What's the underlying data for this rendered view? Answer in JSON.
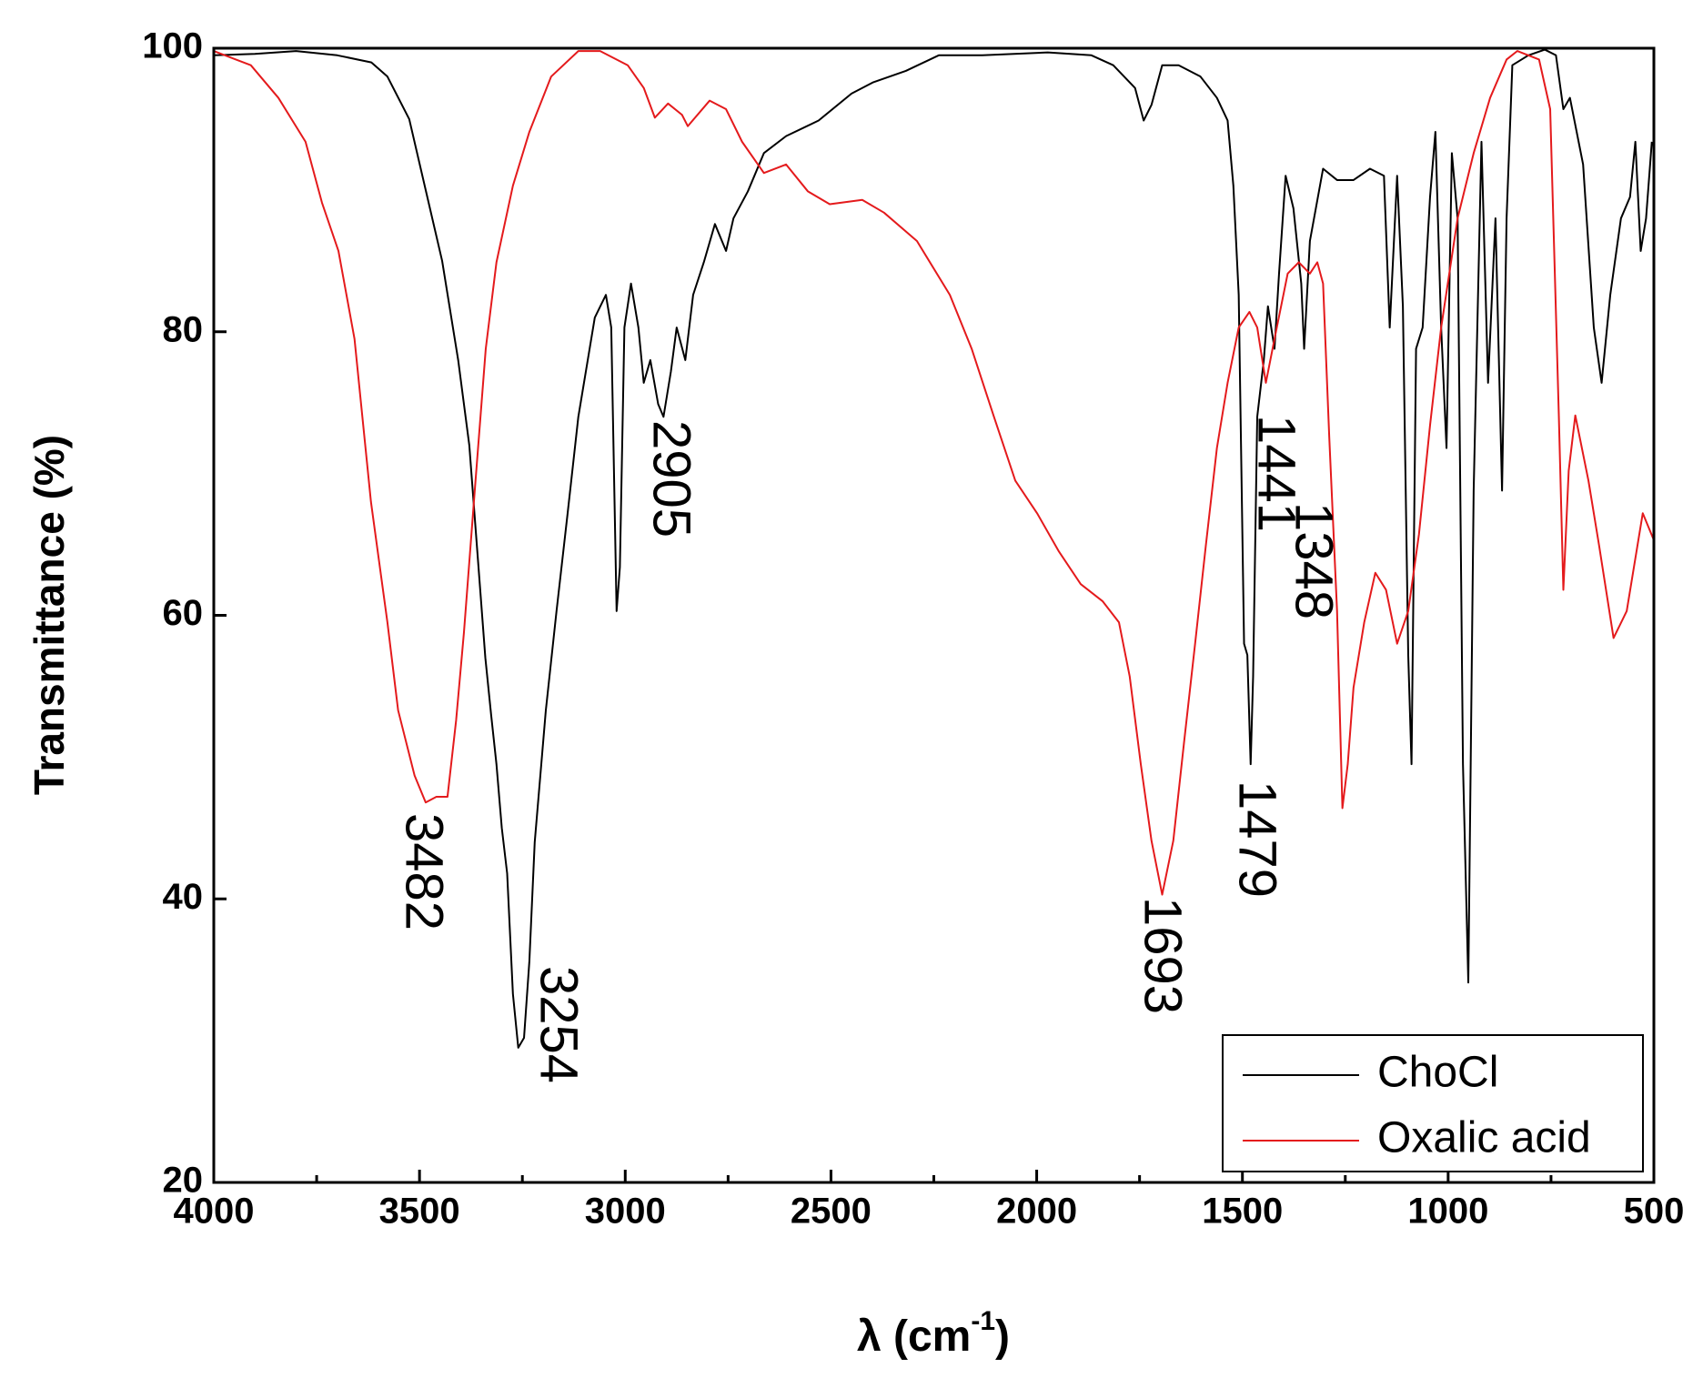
{
  "chart_data": {
    "type": "line",
    "x_label_parts": [
      "λ (cm",
      "-1",
      ")"
    ],
    "y_label": "Transmittance  (%)",
    "xlim": [
      4000,
      500
    ],
    "xticks": [
      4000,
      3500,
      3000,
      2500,
      2000,
      1500,
      1000,
      500
    ],
    "xminor_ticks": [
      3750,
      3250,
      2750,
      2250,
      1750,
      1250,
      750
    ],
    "ylim": [
      20,
      100
    ],
    "yticks": [
      20,
      40,
      60,
      80,
      100
    ],
    "legend": "lower right",
    "annotations": [
      "3482",
      "3254",
      "2905",
      "1693",
      "1479",
      "1441",
      "1348"
    ],
    "series": [
      {
        "name": "ChoCl",
        "color": "#000000",
        "x": [
          4000,
          3900,
          3800,
          3700,
          3617,
          3578,
          3525,
          3485,
          3445,
          3406,
          3379,
          3353,
          3340,
          3326,
          3313,
          3300,
          3287,
          3273,
          3260,
          3246,
          3233,
          3220,
          3193,
          3167,
          3140,
          3114,
          3074,
          3047,
          3034,
          3021,
          3013,
          3002,
          2986,
          2968,
          2955,
          2939,
          2920,
          2907,
          2889,
          2875,
          2854,
          2835,
          2809,
          2782,
          2755,
          2737,
          2702,
          2663,
          2609,
          2530,
          2450,
          2397,
          2318,
          2238,
          2132,
          1973,
          1867,
          1814,
          1761,
          1740,
          1721,
          1695,
          1655,
          1602,
          1562,
          1536,
          1522,
          1509,
          1496,
          1488,
          1480,
          1474,
          1464,
          1448,
          1438,
          1422,
          1411,
          1395,
          1376,
          1357,
          1350,
          1336,
          1304,
          1270,
          1230,
          1190,
          1156,
          1142,
          1124,
          1110,
          1097,
          1089,
          1078,
          1062,
          1044,
          1031,
          1017,
          1004,
          991,
          977,
          964,
          951,
          938,
          919,
          903,
          885,
          869,
          858,
          844,
          805,
          765,
          738,
          720,
          704,
          672,
          646,
          627,
          606,
          580,
          558,
          545,
          532,
          519,
          505
        ],
        "values": [
          99.5,
          99.6,
          99.8,
          99.5,
          99,
          98,
          95,
          90,
          85,
          78,
          72,
          62,
          57,
          53,
          49.5,
          45,
          41.8,
          33.3,
          29.5,
          30.2,
          35.6,
          44,
          53.3,
          60.3,
          67.2,
          74,
          81,
          82.6,
          80.3,
          60.3,
          63.4,
          80.3,
          83.4,
          80.3,
          76.4,
          78,
          74.9,
          74,
          77.2,
          80.3,
          78,
          82.6,
          84.9,
          87.6,
          85.7,
          88,
          89.9,
          92.6,
          93.8,
          94.9,
          96.8,
          97.6,
          98.4,
          99.5,
          99.5,
          99.7,
          99.5,
          98.8,
          97.2,
          94.9,
          96,
          98.8,
          98.8,
          98,
          96.5,
          94.9,
          90.3,
          82.6,
          58,
          57.2,
          49.5,
          55.7,
          74,
          78,
          81.8,
          78.8,
          84.1,
          91,
          88.7,
          83.4,
          78.8,
          86.4,
          91.5,
          90.7,
          90.7,
          91.5,
          91,
          80.3,
          91,
          81.8,
          57.2,
          49.5,
          78.8,
          80.3,
          89.5,
          94.1,
          80.3,
          71.8,
          92.6,
          88,
          49.5,
          34.1,
          68.8,
          93.4,
          76.4,
          88,
          68.8,
          88,
          98.8,
          99.5,
          99.9,
          99.5,
          95.7,
          96.5,
          91.8,
          80.3,
          76.4,
          82.6,
          88,
          89.5,
          93.4,
          85.7,
          88,
          93.4
        ]
      },
      {
        "name": "Oxalic acid",
        "color": "#e41a1c",
        "x": [
          4000,
          3910,
          3843,
          3777,
          3737,
          3697,
          3658,
          3618,
          3578,
          3552,
          3512,
          3485,
          3459,
          3432,
          3411,
          3392,
          3366,
          3339,
          3313,
          3273,
          3233,
          3180,
          3114,
          3061,
          2994,
          2955,
          2928,
          2896,
          2862,
          2848,
          2795,
          2755,
          2716,
          2663,
          2609,
          2556,
          2503,
          2424,
          2371,
          2291,
          2211,
          2158,
          2105,
          2052,
          1999,
          1946,
          1893,
          1840,
          1800,
          1774,
          1747,
          1721,
          1695,
          1668,
          1642,
          1615,
          1589,
          1562,
          1536,
          1509,
          1483,
          1464,
          1443,
          1422,
          1390,
          1363,
          1336,
          1318,
          1304,
          1289,
          1270,
          1257,
          1244,
          1230,
          1204,
          1177,
          1151,
          1124,
          1097,
          1071,
          1044,
          1017,
          977,
          938,
          898,
          858,
          832,
          779,
          752,
          731,
          720,
          707,
          691,
          659,
          633,
          598,
          566,
          527,
          500
        ],
        "values": [
          99.8,
          98.8,
          96.5,
          93.4,
          89.1,
          85.7,
          79.5,
          68,
          59.5,
          53.3,
          48.7,
          46.8,
          47.2,
          47.2,
          52.6,
          58.8,
          68.7,
          78.8,
          84.9,
          90.3,
          94.1,
          98,
          99.8,
          99.8,
          98.8,
          97.2,
          95.1,
          96.1,
          95.3,
          94.5,
          96.3,
          95.7,
          93.4,
          91.2,
          91.8,
          89.9,
          89,
          89.3,
          88.4,
          86.4,
          82.6,
          78.8,
          74.1,
          69.5,
          67.2,
          64.5,
          62.2,
          61,
          59.5,
          55.7,
          49.5,
          44.1,
          40.3,
          44.1,
          51,
          58,
          64.9,
          71.8,
          76.4,
          80.3,
          81.4,
          80.3,
          76.4,
          79.5,
          84.1,
          84.9,
          84.1,
          84.9,
          83.4,
          72.6,
          60.3,
          46.4,
          49.5,
          54.9,
          59.5,
          63,
          61.8,
          58,
          60.3,
          65.7,
          73.4,
          80.3,
          88,
          92.6,
          96.5,
          99.2,
          99.8,
          99.2,
          95.7,
          74.1,
          61.8,
          70.2,
          74.1,
          69.5,
          64.9,
          58.4,
          60.3,
          67.2,
          65.3
        ]
      }
    ]
  }
}
